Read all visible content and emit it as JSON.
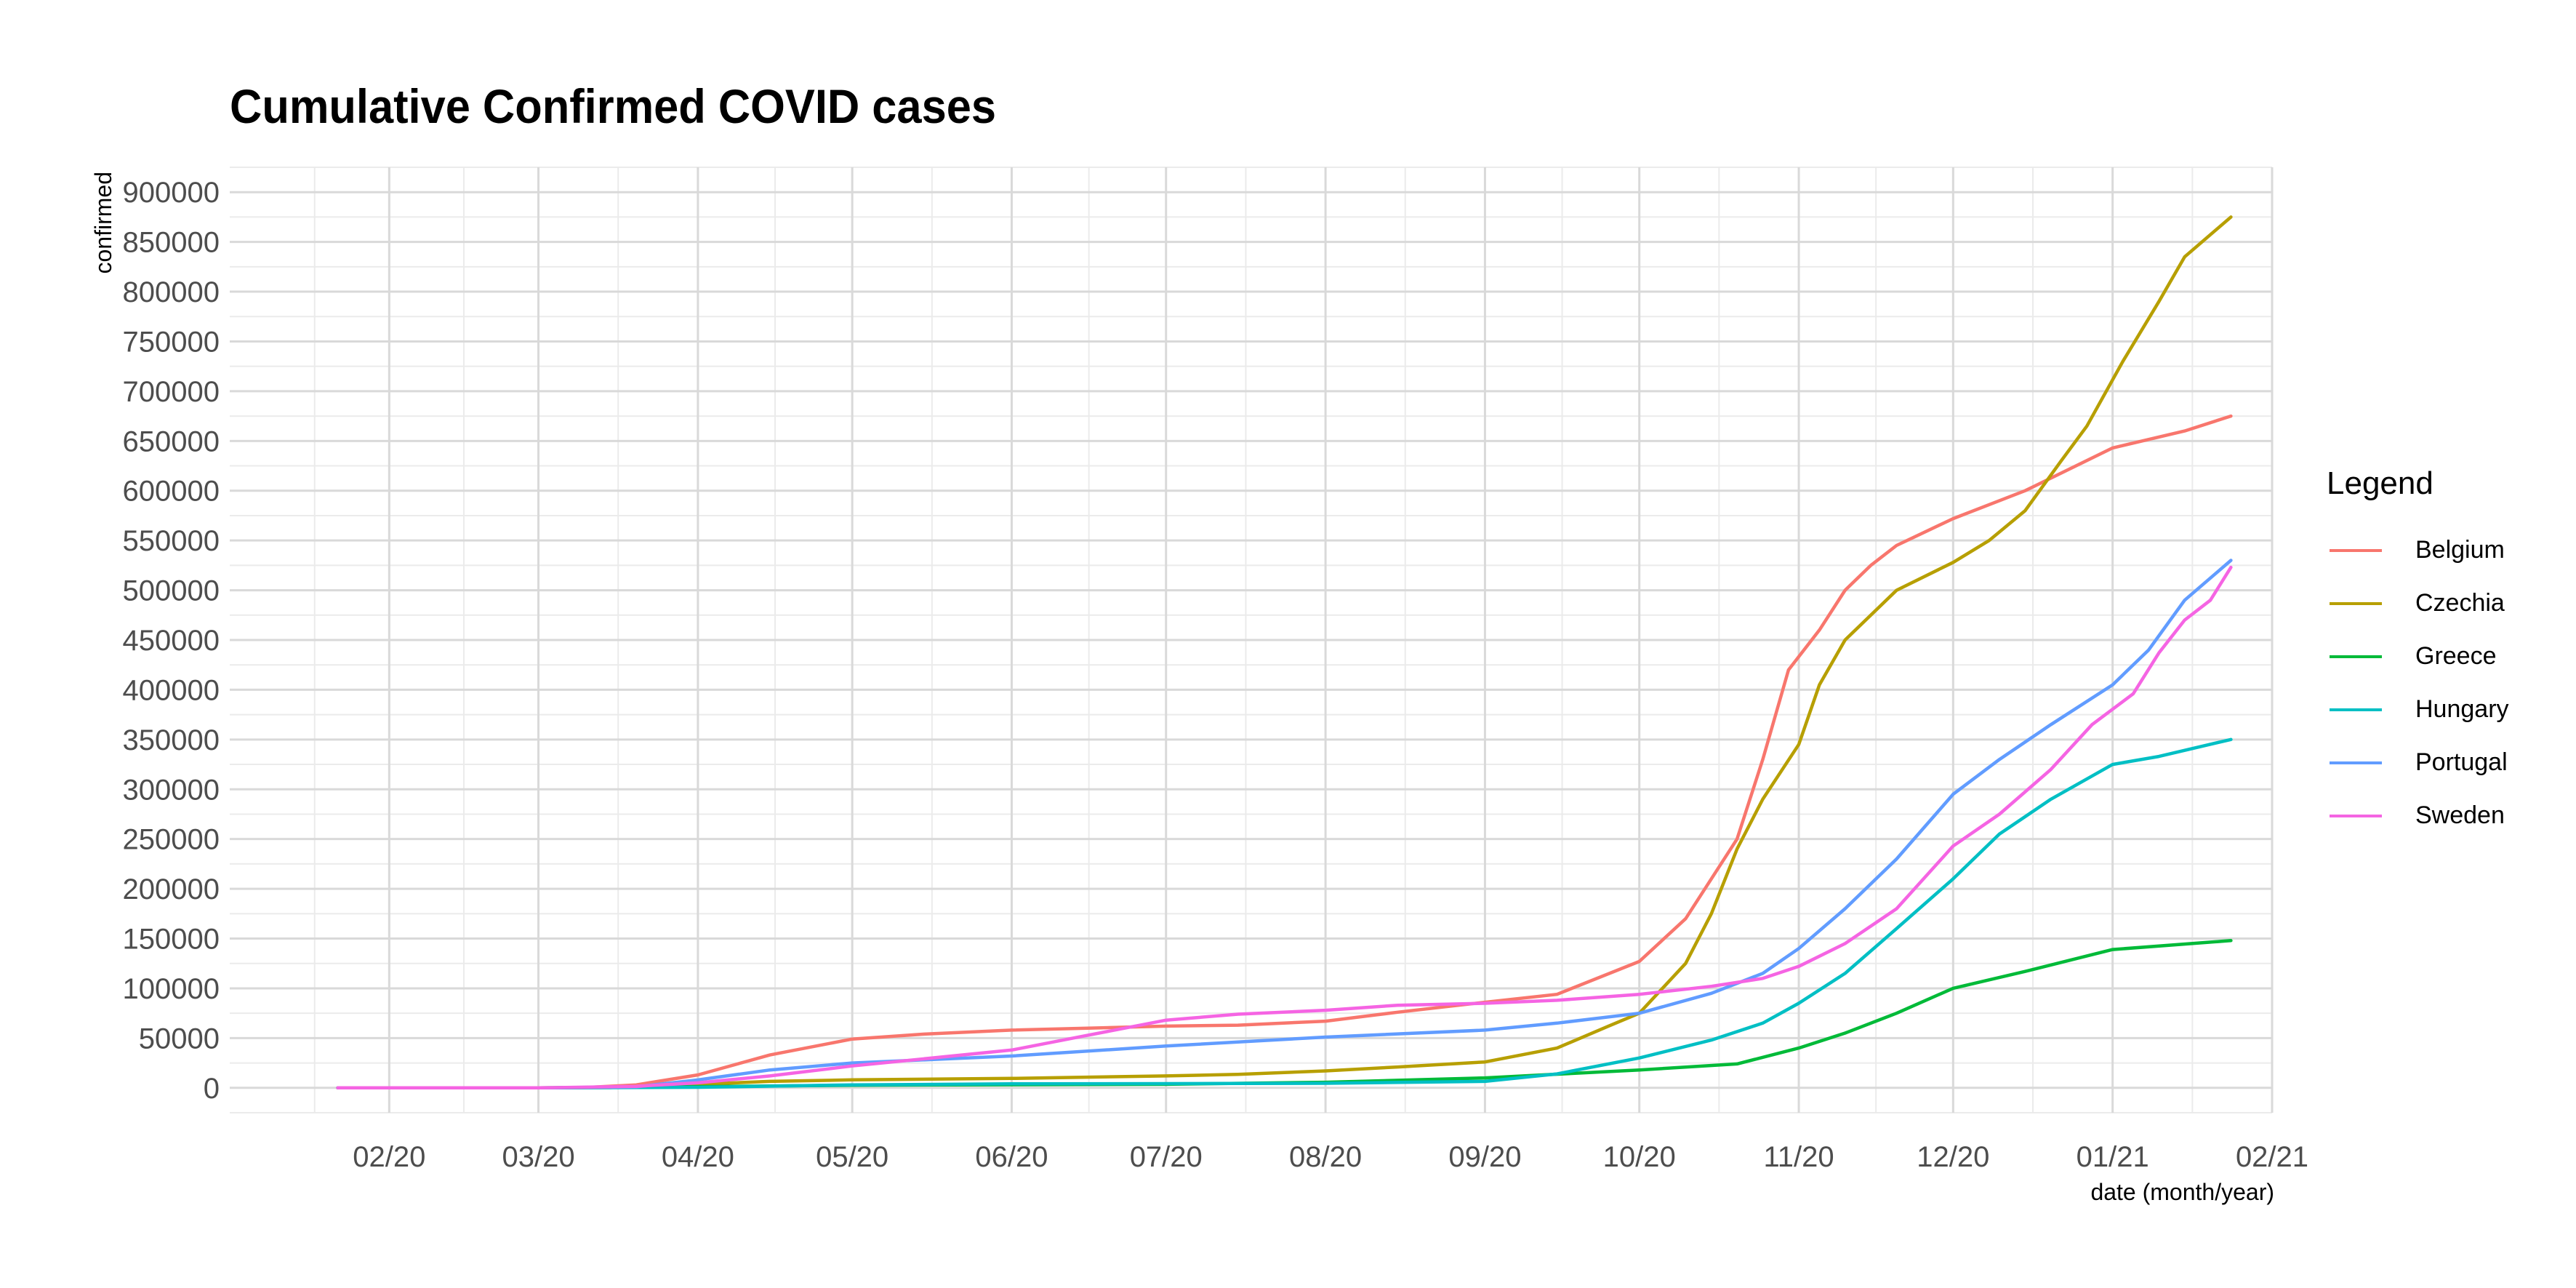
{
  "chart_data": {
    "type": "line",
    "title": "Cumulative Confirmed COVID cases",
    "xlabel": "date (month/year)",
    "ylabel": "confirmed",
    "legend_title": "Legend",
    "legend_position": "right",
    "grid": true,
    "x_range": [
      "2020-01-01",
      "2021-02-01"
    ],
    "ylim": [
      -25000,
      925000
    ],
    "y_ticks": [
      0,
      50000,
      100000,
      150000,
      200000,
      250000,
      300000,
      350000,
      400000,
      450000,
      500000,
      550000,
      600000,
      650000,
      700000,
      750000,
      800000,
      850000,
      900000
    ],
    "x_ticks": [
      {
        "date": "2020-02-01",
        "label": "02/20"
      },
      {
        "date": "2020-03-01",
        "label": "03/20"
      },
      {
        "date": "2020-04-01",
        "label": "04/20"
      },
      {
        "date": "2020-05-01",
        "label": "05/20"
      },
      {
        "date": "2020-06-01",
        "label": "06/20"
      },
      {
        "date": "2020-07-01",
        "label": "07/20"
      },
      {
        "date": "2020-08-01",
        "label": "08/20"
      },
      {
        "date": "2020-09-01",
        "label": "09/20"
      },
      {
        "date": "2020-10-01",
        "label": "10/20"
      },
      {
        "date": "2020-11-01",
        "label": "11/20"
      },
      {
        "date": "2020-12-01",
        "label": "12/20"
      },
      {
        "date": "2021-01-01",
        "label": "01/21"
      },
      {
        "date": "2021-02-01",
        "label": "02/21"
      }
    ],
    "series": [
      {
        "name": "Belgium",
        "color": "#F8766D",
        "points": [
          [
            "2020-01-22",
            0
          ],
          [
            "2020-03-01",
            0
          ],
          [
            "2020-03-10",
            300
          ],
          [
            "2020-03-20",
            3000
          ],
          [
            "2020-04-01",
            13000
          ],
          [
            "2020-04-15",
            33000
          ],
          [
            "2020-05-01",
            49000
          ],
          [
            "2020-05-15",
            54000
          ],
          [
            "2020-06-01",
            58000
          ],
          [
            "2020-07-01",
            62000
          ],
          [
            "2020-07-15",
            63000
          ],
          [
            "2020-08-01",
            67000
          ],
          [
            "2020-08-15",
            76000
          ],
          [
            "2020-09-01",
            86000
          ],
          [
            "2020-09-15",
            94000
          ],
          [
            "2020-10-01",
            127000
          ],
          [
            "2020-10-10",
            170000
          ],
          [
            "2020-10-20",
            250000
          ],
          [
            "2020-10-25",
            330000
          ],
          [
            "2020-10-30",
            420000
          ],
          [
            "2020-11-05",
            460000
          ],
          [
            "2020-11-10",
            500000
          ],
          [
            "2020-11-15",
            525000
          ],
          [
            "2020-11-20",
            545000
          ],
          [
            "2020-12-01",
            572000
          ],
          [
            "2020-12-15",
            600000
          ],
          [
            "2021-01-01",
            643000
          ],
          [
            "2021-01-15",
            660000
          ],
          [
            "2021-01-24",
            675000
          ]
        ]
      },
      {
        "name": "Czechia",
        "color": "#B79F00",
        "points": [
          [
            "2020-01-22",
            0
          ],
          [
            "2020-03-01",
            0
          ],
          [
            "2020-03-15",
            300
          ],
          [
            "2020-04-01",
            3500
          ],
          [
            "2020-04-15",
            6500
          ],
          [
            "2020-05-01",
            8000
          ],
          [
            "2020-06-01",
            9500
          ],
          [
            "2020-07-01",
            12000
          ],
          [
            "2020-07-15",
            13500
          ],
          [
            "2020-08-01",
            17000
          ],
          [
            "2020-08-15",
            21000
          ],
          [
            "2020-09-01",
            26000
          ],
          [
            "2020-09-15",
            40000
          ],
          [
            "2020-09-25",
            62000
          ],
          [
            "2020-10-01",
            75000
          ],
          [
            "2020-10-10",
            125000
          ],
          [
            "2020-10-15",
            175000
          ],
          [
            "2020-10-20",
            240000
          ],
          [
            "2020-10-25",
            290000
          ],
          [
            "2020-11-01",
            345000
          ],
          [
            "2020-11-05",
            405000
          ],
          [
            "2020-11-10",
            450000
          ],
          [
            "2020-11-20",
            500000
          ],
          [
            "2020-12-01",
            528000
          ],
          [
            "2020-12-08",
            550000
          ],
          [
            "2020-12-15",
            580000
          ],
          [
            "2020-12-22",
            630000
          ],
          [
            "2020-12-27",
            665000
          ],
          [
            "2021-01-03",
            730000
          ],
          [
            "2021-01-10",
            790000
          ],
          [
            "2021-01-15",
            835000
          ],
          [
            "2021-01-24",
            875000
          ]
        ]
      },
      {
        "name": "Greece",
        "color": "#00BA38",
        "points": [
          [
            "2020-01-22",
            0
          ],
          [
            "2020-03-01",
            0
          ],
          [
            "2020-04-01",
            1200
          ],
          [
            "2020-05-01",
            2600
          ],
          [
            "2020-06-01",
            3100
          ],
          [
            "2020-07-01",
            3600
          ],
          [
            "2020-08-01",
            5600
          ],
          [
            "2020-09-01",
            10000
          ],
          [
            "2020-10-01",
            18000
          ],
          [
            "2020-10-20",
            24000
          ],
          [
            "2020-11-01",
            40000
          ],
          [
            "2020-11-10",
            55000
          ],
          [
            "2020-11-20",
            75000
          ],
          [
            "2020-12-01",
            100000
          ],
          [
            "2020-12-15",
            117000
          ],
          [
            "2021-01-01",
            139000
          ],
          [
            "2021-01-24",
            148000
          ]
        ]
      },
      {
        "name": "Hungary",
        "color": "#00BFC4",
        "points": [
          [
            "2020-01-22",
            0
          ],
          [
            "2020-03-01",
            0
          ],
          [
            "2020-04-01",
            600
          ],
          [
            "2020-05-01",
            3000
          ],
          [
            "2020-06-01",
            4000
          ],
          [
            "2020-07-01",
            4200
          ],
          [
            "2020-08-01",
            4600
          ],
          [
            "2020-09-01",
            6500
          ],
          [
            "2020-09-15",
            14000
          ],
          [
            "2020-10-01",
            30000
          ],
          [
            "2020-10-15",
            48000
          ],
          [
            "2020-10-25",
            65000
          ],
          [
            "2020-11-01",
            85000
          ],
          [
            "2020-11-10",
            115000
          ],
          [
            "2020-11-20",
            160000
          ],
          [
            "2020-12-01",
            210000
          ],
          [
            "2020-12-10",
            255000
          ],
          [
            "2020-12-20",
            290000
          ],
          [
            "2021-01-01",
            325000
          ],
          [
            "2021-01-10",
            333000
          ],
          [
            "2021-01-24",
            350000
          ]
        ]
      },
      {
        "name": "Portugal",
        "color": "#619CFF",
        "points": [
          [
            "2020-01-22",
            0
          ],
          [
            "2020-03-01",
            0
          ],
          [
            "2020-03-20",
            1000
          ],
          [
            "2020-04-01",
            8000
          ],
          [
            "2020-04-15",
            18000
          ],
          [
            "2020-05-01",
            25000
          ],
          [
            "2020-06-01",
            32000
          ],
          [
            "2020-07-01",
            42000
          ],
          [
            "2020-08-01",
            51000
          ],
          [
            "2020-09-01",
            58000
          ],
          [
            "2020-09-15",
            65000
          ],
          [
            "2020-10-01",
            75000
          ],
          [
            "2020-10-15",
            95000
          ],
          [
            "2020-10-25",
            115000
          ],
          [
            "2020-11-01",
            140000
          ],
          [
            "2020-11-10",
            180000
          ],
          [
            "2020-11-20",
            230000
          ],
          [
            "2020-12-01",
            295000
          ],
          [
            "2020-12-10",
            330000
          ],
          [
            "2020-12-20",
            365000
          ],
          [
            "2021-01-01",
            405000
          ],
          [
            "2021-01-08",
            440000
          ],
          [
            "2021-01-15",
            490000
          ],
          [
            "2021-01-24",
            530000
          ]
        ]
      },
      {
        "name": "Sweden",
        "color": "#F564E3",
        "points": [
          [
            "2020-01-22",
            0
          ],
          [
            "2020-03-01",
            0
          ],
          [
            "2020-03-20",
            1500
          ],
          [
            "2020-04-01",
            5000
          ],
          [
            "2020-04-15",
            12000
          ],
          [
            "2020-05-01",
            22000
          ],
          [
            "2020-06-01",
            38000
          ],
          [
            "2020-06-15",
            52000
          ],
          [
            "2020-07-01",
            68000
          ],
          [
            "2020-07-15",
            74000
          ],
          [
            "2020-08-01",
            78000
          ],
          [
            "2020-08-15",
            83000
          ],
          [
            "2020-09-01",
            85000
          ],
          [
            "2020-09-15",
            88000
          ],
          [
            "2020-10-01",
            94000
          ],
          [
            "2020-10-15",
            102000
          ],
          [
            "2020-10-25",
            110000
          ],
          [
            "2020-11-01",
            122000
          ],
          [
            "2020-11-10",
            145000
          ],
          [
            "2020-11-20",
            180000
          ],
          [
            "2020-12-01",
            243000
          ],
          [
            "2020-12-10",
            275000
          ],
          [
            "2020-12-20",
            320000
          ],
          [
            "2020-12-28",
            365000
          ],
          [
            "2021-01-05",
            396000
          ],
          [
            "2021-01-10",
            437000
          ],
          [
            "2021-01-15",
            470000
          ],
          [
            "2021-01-20",
            490000
          ],
          [
            "2021-01-24",
            523000
          ]
        ]
      }
    ]
  }
}
